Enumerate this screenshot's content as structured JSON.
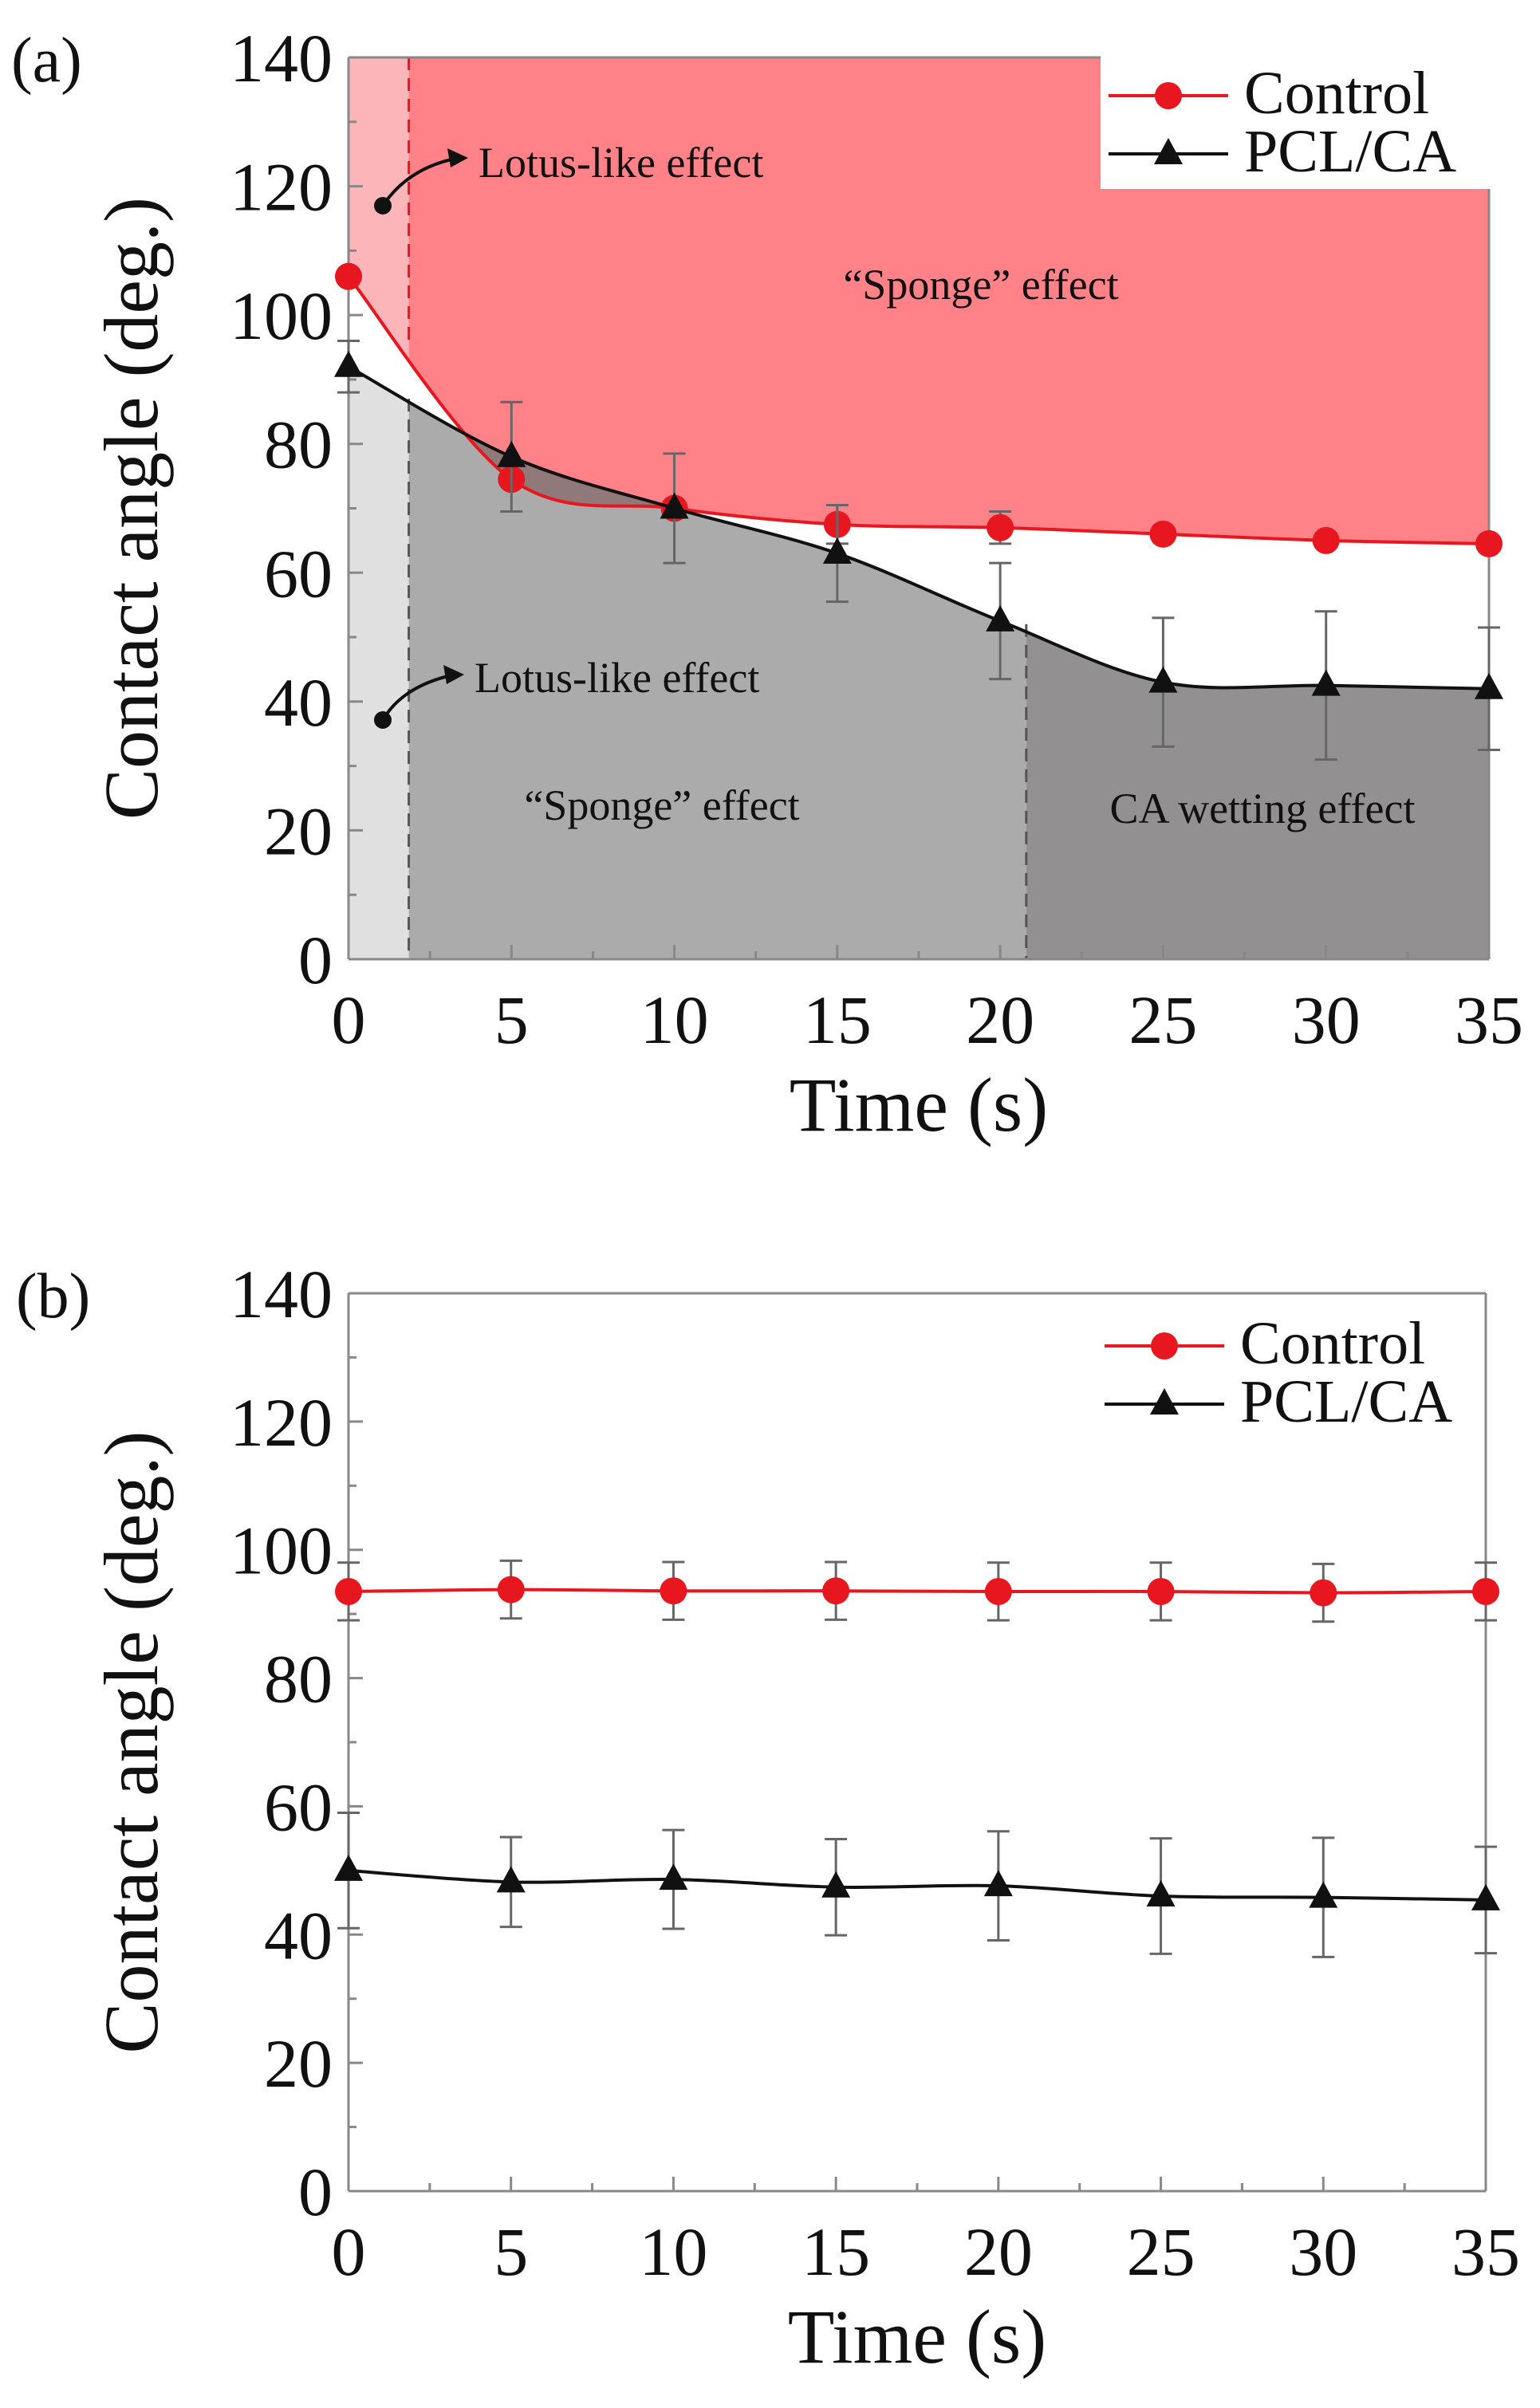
{
  "chart_data": [
    {
      "panel_label": "(a)",
      "type": "line",
      "xlabel": "Time (s)",
      "ylabel": "Contact angle (deg.)",
      "xlim": [
        0,
        35
      ],
      "ylim": [
        0,
        140
      ],
      "xticks": [
        0,
        5,
        10,
        15,
        20,
        25,
        30,
        35
      ],
      "yticks": [
        0,
        20,
        40,
        60,
        80,
        100,
        120,
        140
      ],
      "x": [
        0,
        5,
        10,
        15,
        20,
        25,
        30,
        35
      ],
      "series": [
        {
          "name": "Control",
          "color": "#e8161e",
          "marker": "circle",
          "values": [
            106,
            74.5,
            70,
            67.5,
            67,
            66,
            65,
            64.5
          ],
          "errors": [
            0,
            0,
            0,
            3,
            2.5,
            0,
            0,
            0
          ]
        },
        {
          "name": "PCL/CA",
          "color": "#111111",
          "marker": "triangle",
          "values": [
            92,
            78,
            70,
            63,
            52.5,
            43,
            42.5,
            42
          ],
          "errors": [
            4,
            8.5,
            8.5,
            7.5,
            9,
            10,
            11.5,
            9.5
          ]
        }
      ],
      "regions": {
        "control_split_x": 1.85,
        "pcl_split_x": [
          1.85,
          20.8
        ],
        "colors": {
          "control_lotus": "#fcb5b9",
          "control_sponge": "#fe8288",
          "pcl_lotus": "#e0e0e0",
          "pcl_sponge": "#ababab",
          "pcl_wetting": "#929090"
        }
      },
      "annotations": [
        {
          "text": "Lotus-like effect",
          "at": [
            1,
            117
          ]
        },
        {
          "text": "“Sponge” effect",
          "at": [
            20,
            105
          ]
        },
        {
          "text": "Lotus-like effect",
          "at": [
            1,
            37
          ]
        },
        {
          "text": "“Sponge” effect",
          "at": [
            10,
            23
          ]
        },
        {
          "text": "CA wetting effect",
          "at": [
            28,
            23
          ]
        }
      ],
      "legend": "top-right"
    },
    {
      "panel_label": "(b)",
      "type": "line",
      "xlabel": "Time (s)",
      "ylabel": "Contact angle (deg.)",
      "xlim": [
        0,
        35
      ],
      "ylim": [
        0,
        140
      ],
      "xticks": [
        0,
        5,
        10,
        15,
        20,
        25,
        30,
        35
      ],
      "yticks": [
        0,
        20,
        40,
        60,
        80,
        100,
        120,
        140
      ],
      "x": [
        0,
        5,
        10,
        15,
        20,
        25,
        30,
        35
      ],
      "series": [
        {
          "name": "Control",
          "color": "#e8161e",
          "marker": "circle",
          "values": [
            93.5,
            93.8,
            93.6,
            93.6,
            93.5,
            93.5,
            93.3,
            93.5
          ],
          "errors": [
            4.5,
            4.5,
            4.5,
            4.5,
            4.5,
            4.5,
            4.5,
            4.5
          ]
        },
        {
          "name": "PCL/CA",
          "color": "#111111",
          "marker": "triangle",
          "values": [
            50,
            48.2,
            48.6,
            47.4,
            47.6,
            46,
            45.8,
            45.4
          ],
          "errors": [
            9,
            7,
            7.7,
            7.5,
            8.5,
            9,
            9.3,
            8.3
          ]
        }
      ],
      "legend": "top-right"
    }
  ]
}
